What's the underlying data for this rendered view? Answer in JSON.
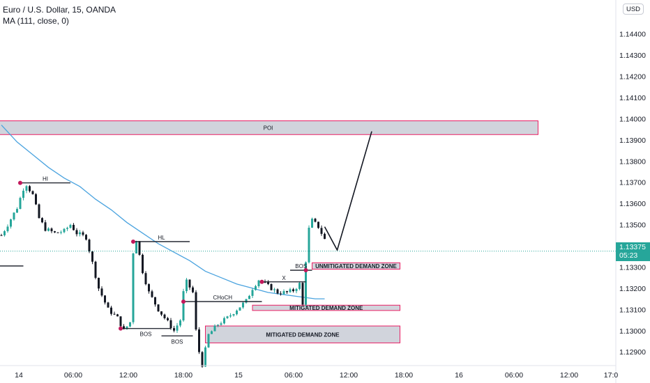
{
  "legend": {
    "symbol": "Euro / U.S. Dollar, 15, OANDA",
    "indicator": "MA (111, close, 0)"
  },
  "price_axis": {
    "currency": "USD",
    "last_price": "1.13375",
    "countdown": "05:23"
  },
  "colors": {
    "up": "#26a69a",
    "down": "#131722",
    "ma": "#4aa3df",
    "zone_fill": "#d1d4dc",
    "zone_border": "#e91e63",
    "pivot": "#c2185b"
  },
  "chart_data": {
    "type": "candlestick",
    "ylim": [
      1.12835,
      1.1456
    ],
    "y_ticks": [
      1.144,
      1.143,
      1.142,
      1.141,
      1.14,
      1.139,
      1.138,
      1.137,
      1.136,
      1.135,
      1.134,
      1.133,
      1.132,
      1.131,
      1.13,
      1.129
    ],
    "x_ticks": [
      "14",
      "06:00",
      "12:00",
      "18:00",
      "15",
      "06:00",
      "12:00",
      "18:00",
      "16",
      "06:00",
      "12:00",
      "17:0"
    ],
    "price_path": [
      [
        0,
        1.1345
      ],
      [
        2,
        1.135
      ],
      [
        5,
        1.1358
      ],
      [
        7,
        1.1367
      ],
      [
        8,
        1.1369
      ],
      [
        10,
        1.1364
      ],
      [
        12,
        1.1353
      ],
      [
        14,
        1.1348
      ],
      [
        17,
        1.1346
      ],
      [
        20,
        1.1347
      ],
      [
        22,
        1.135
      ],
      [
        24,
        1.1346
      ],
      [
        27,
        1.1344
      ],
      [
        29,
        1.1332
      ],
      [
        31,
        1.132
      ],
      [
        34,
        1.131
      ],
      [
        37,
        1.1306
      ],
      [
        39,
        1.13
      ],
      [
        41,
        1.1304
      ],
      [
        42,
        1.1337
      ],
      [
        43,
        1.1343
      ],
      [
        45,
        1.1328
      ],
      [
        47,
        1.1318
      ],
      [
        50,
        1.131
      ],
      [
        53,
        1.1304
      ],
      [
        55,
        1.13
      ],
      [
        57,
        1.1305
      ],
      [
        58,
        1.1318
      ],
      [
        59,
        1.1323
      ],
      [
        61,
        1.1318
      ],
      [
        62,
        1.13
      ],
      [
        63,
        1.129
      ],
      [
        64,
        1.1284
      ],
      [
        66,
        1.1298
      ],
      [
        69,
        1.1303
      ],
      [
        72,
        1.1306
      ],
      [
        75,
        1.131
      ],
      [
        78,
        1.1314
      ],
      [
        80,
        1.132
      ],
      [
        82,
        1.1324
      ],
      [
        85,
        1.1321
      ],
      [
        88,
        1.1318
      ],
      [
        91,
        1.1318
      ],
      [
        93,
        1.1319
      ],
      [
        95,
        1.1322
      ],
      [
        96,
        1.1312
      ],
      [
        97,
        1.1333
      ],
      [
        98,
        1.1348
      ],
      [
        99,
        1.1352
      ],
      [
        101,
        1.1349
      ],
      [
        103,
        1.1343
      ]
    ],
    "moving_average": {
      "name": "MA (111, close, 0)",
      "points": [
        [
          0,
          1.1397
        ],
        [
          5,
          1.1389
        ],
        [
          10,
          1.1383
        ],
        [
          15,
          1.1377
        ],
        [
          20,
          1.1372
        ],
        [
          25,
          1.1368
        ],
        [
          30,
          1.1362
        ],
        [
          35,
          1.1357
        ],
        [
          40,
          1.1351
        ],
        [
          45,
          1.1346
        ],
        [
          50,
          1.1341
        ],
        [
          55,
          1.1337
        ],
        [
          60,
          1.1333
        ],
        [
          65,
          1.1328
        ],
        [
          70,
          1.1325
        ],
        [
          75,
          1.1322
        ],
        [
          80,
          1.132
        ],
        [
          85,
          1.1318
        ],
        [
          90,
          1.1317
        ],
        [
          95,
          1.1316
        ],
        [
          100,
          1.1315
        ],
        [
          103,
          1.1315
        ]
      ]
    },
    "projection": [
      [
        103,
        1.1349
      ],
      [
        107,
        1.1338
      ],
      [
        118,
        1.1394
      ]
    ],
    "zones": [
      {
        "label": "POI",
        "x0": -1,
        "x1": 171,
        "y0": 1.13925,
        "y1": 1.1399
      },
      {
        "label": "UNMITIGATED DEMAND ZONE",
        "x0": 99,
        "x1": 127,
        "y0": 1.1329,
        "y1": 1.1332
      },
      {
        "label": "MITIGATED DEMAND ZONE",
        "x0": 80,
        "x1": 127,
        "y0": 1.13095,
        "y1": 1.1312
      },
      {
        "label": "MITIGATED DEMAND ZONE",
        "x0": 65,
        "x1": 127,
        "y0": 1.12942,
        "y1": 1.13022
      }
    ],
    "structure_levels": [
      {
        "label": "HI",
        "x0": 6,
        "x1": 22,
        "y": 1.13697
      },
      {
        "label": "HL",
        "x0": 42,
        "x1": 60,
        "y": 1.1342
      },
      {
        "label": "BOS",
        "x0": 38,
        "x1": 54,
        "y": 1.1301
      },
      {
        "label": "BOS",
        "x0": 51,
        "x1": 61,
        "y": 1.12975
      },
      {
        "label": "CHoCH",
        "x0": 58,
        "x1": 83,
        "y": 1.13137
      },
      {
        "label": "X",
        "x0": 83,
        "x1": 97,
        "y": 1.1323
      },
      {
        "label": "BOS",
        "x0": 92,
        "x1": 99,
        "y": 1.13285
      },
      {
        "label": "",
        "x0": -1,
        "x1": 7,
        "y": 1.13305
      }
    ],
    "pivots": [
      [
        6,
        1.13697
      ],
      [
        42,
        1.1342
      ],
      [
        38,
        1.1301
      ],
      [
        58,
        1.13137
      ],
      [
        83,
        1.1323
      ],
      [
        97,
        1.13285
      ]
    ],
    "last_price": 1.13375
  }
}
